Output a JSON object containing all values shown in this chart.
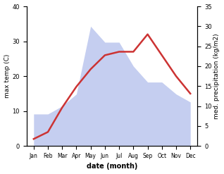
{
  "months": [
    "Jan",
    "Feb",
    "Mar",
    "Apr",
    "May",
    "Jun",
    "Jul",
    "Aug",
    "Sep",
    "Oct",
    "Nov",
    "Dec"
  ],
  "x": [
    0,
    1,
    2,
    3,
    4,
    5,
    6,
    7,
    8,
    9,
    10,
    11
  ],
  "temperature": [
    2,
    4,
    11,
    17,
    22,
    26,
    27,
    27,
    32,
    26,
    20,
    15
  ],
  "precipitation": [
    8,
    8,
    10,
    13,
    30,
    26,
    26,
    20,
    16,
    16,
    13,
    11
  ],
  "temp_color": "#cc3333",
  "precip_fill_color": "#c5cef0",
  "temp_ylim": [
    0,
    40
  ],
  "precip_ylim": [
    0,
    35
  ],
  "temp_yticks": [
    0,
    10,
    20,
    30,
    40
  ],
  "precip_yticks": [
    0,
    5,
    10,
    15,
    20,
    25,
    30,
    35
  ],
  "ylabel_left": "max temp (C)",
  "ylabel_right": "med. precipitation (kg/m2)",
  "xlabel": "date (month)",
  "background_color": "#ffffff",
  "temp_linewidth": 1.8,
  "xlabel_fontsize": 7,
  "ylabel_fontsize": 6.5,
  "tick_fontsize": 6.0,
  "month_fontsize": 5.5
}
